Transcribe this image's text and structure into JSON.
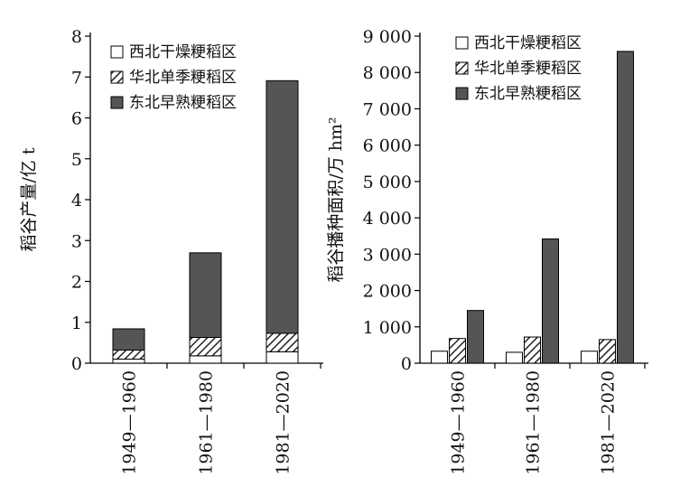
{
  "chart_data": [
    {
      "type": "bar",
      "stacked": true,
      "ylabel": "稻谷产量/亿 t",
      "categories": [
        "1949—1960",
        "1961—1980",
        "1981—2020"
      ],
      "ylim": [
        0,
        8
      ],
      "yticks": [
        "0",
        "1",
        "2",
        "3",
        "4",
        "5",
        "6",
        "7",
        "8"
      ],
      "series": [
        {
          "name": "西北干燥粳稻区",
          "values": [
            0.1,
            0.18,
            0.28
          ]
        },
        {
          "name": "华北单季粳稻区",
          "values": [
            0.22,
            0.45,
            0.45
          ]
        },
        {
          "name": "东北早熟粳稻区",
          "values": [
            0.52,
            2.07,
            6.18
          ]
        }
      ],
      "legend": "top-left"
    },
    {
      "type": "bar",
      "stacked": false,
      "ylabel": "稻谷播种面积/万 hm²",
      "categories": [
        "1949—1960",
        "1961—1980",
        "1981—2020"
      ],
      "ylim": [
        0,
        9000
      ],
      "yticks": [
        "0",
        "1 000",
        "2 000",
        "3 000",
        "4 000",
        "5 000",
        "6 000",
        "7 000",
        "8 000",
        "9 000"
      ],
      "series": [
        {
          "name": "西北干燥粳稻区",
          "values": [
            330,
            300,
            330
          ]
        },
        {
          "name": "华北单季粳稻区",
          "values": [
            680,
            720,
            650
          ]
        },
        {
          "name": "东北早熟粳稻区",
          "values": [
            1450,
            3420,
            8580
          ]
        }
      ],
      "legend": "top-left"
    }
  ],
  "styles": {
    "bar_dark": "#555555",
    "bar_hatch": "#222222",
    "bar_white": "#ffffff",
    "axis_color": "#000000",
    "series_fills": [
      "white",
      "hatch",
      "dark"
    ]
  }
}
